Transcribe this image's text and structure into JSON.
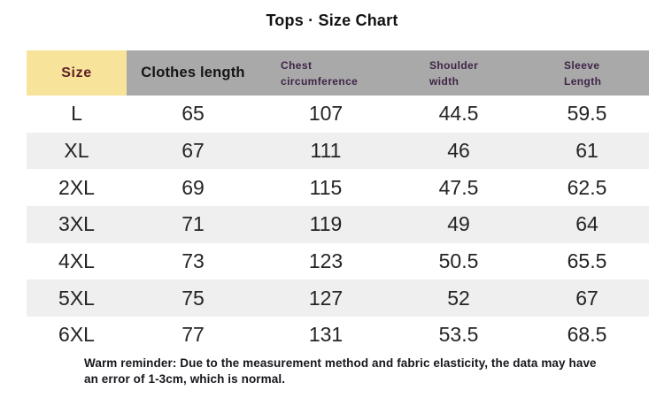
{
  "title": "Tops · Size Chart",
  "table": {
    "headers": [
      "Size",
      "Clothes length",
      "Chest circumference",
      "Shoulder width",
      "Sleeve Length"
    ],
    "rows": [
      [
        "L",
        "65",
        "107",
        "44.5",
        "59.5"
      ],
      [
        "XL",
        "67",
        "111",
        "46",
        "61"
      ],
      [
        "2XL",
        "69",
        "115",
        "47.5",
        "62.5"
      ],
      [
        "3XL",
        "71",
        "119",
        "49",
        "64"
      ],
      [
        "4XL",
        "73",
        "123",
        "50.5",
        "65.5"
      ],
      [
        "5XL",
        "75",
        "127",
        "52",
        "67"
      ],
      [
        "6XL",
        "77",
        "131",
        "53.5",
        "68.5"
      ]
    ]
  },
  "footnote": "Warm reminder: Due to the measurement method and fabric elasticity, the data may have an error of 1-3cm, which is normal.",
  "colors": {
    "size_header_bg": "#f8e39a",
    "size_header_text": "#5d2125",
    "header_row_bg": "#a9a9a9",
    "header_small_text": "#3e2547",
    "stripe_row_bg": "#efefef",
    "body_text": "#242424"
  },
  "chart_data": {
    "type": "table",
    "title": "Tops · Size Chart",
    "columns": [
      "Size",
      "Clothes length",
      "Chest circumference",
      "Shoulder width",
      "Sleeve Length"
    ],
    "rows": [
      [
        "L",
        65,
        107,
        44.5,
        59.5
      ],
      [
        "XL",
        67,
        111,
        46,
        61
      ],
      [
        "2XL",
        69,
        115,
        47.5,
        62.5
      ],
      [
        "3XL",
        71,
        119,
        49,
        64
      ],
      [
        "4XL",
        73,
        123,
        50.5,
        65.5
      ],
      [
        "5XL",
        75,
        127,
        52,
        67
      ],
      [
        "6XL",
        77,
        131,
        53.5,
        68.5
      ]
    ],
    "units": "cm",
    "note": "Warm reminder: Due to the measurement method and fabric elasticity, the data may have an error of 1-3cm, which is normal.",
    "layout": {
      "striped_rows": [
        1,
        3,
        5
      ],
      "header_highlight_column": "Size"
    }
  }
}
